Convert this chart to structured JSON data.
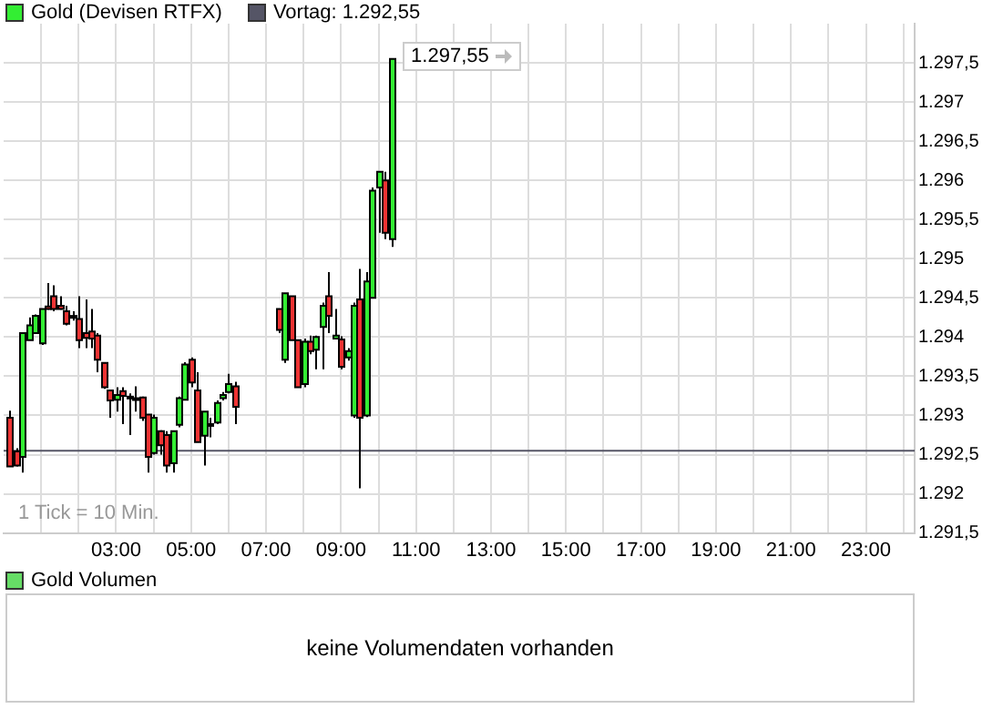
{
  "chart_data": [
    {
      "type": "candlestick",
      "legend": "top left",
      "grid": true,
      "series": [
        {
          "name": "Gold (Devisen RTFX)",
          "color": "#33ee33",
          "x": [
            0.17,
            0.33,
            0.5,
            0.67,
            0.83,
            1,
            1.17,
            1.33,
            1.5,
            1.67,
            1.83,
            2,
            2.17,
            2.33,
            2.5,
            2.67,
            2.83,
            3,
            3.17,
            3.33,
            3.5,
            3.67,
            3.83,
            4,
            4.17,
            4.33,
            4.5,
            4.67,
            4.83,
            5,
            5.17,
            5.33,
            5.5,
            5.67,
            5.83,
            6,
            6.17,
            7.33,
            7.5,
            7.67,
            7.83,
            8,
            8.17,
            8.33,
            8.5,
            8.67,
            8.83,
            9,
            9.17,
            9.33,
            9.5,
            9.67,
            9.83,
            10,
            10.17,
            10.33
          ],
          "ohlc": [
            [
              1292.97,
              1293.06,
              1292.35,
              1292.35
            ],
            [
              1292.54,
              1292.58,
              1292.35,
              1292.36
            ],
            [
              1292.47,
              1294.05,
              1292.27,
              1294.05
            ],
            [
              1293.96,
              1294.25,
              1293.96,
              1294.15
            ],
            [
              1294.05,
              1294.29,
              1294.04,
              1294.27
            ],
            [
              1293.92,
              1294.36,
              1293.9,
              1294.36
            ],
            [
              1294.39,
              1294.69,
              1294.35,
              1294.36
            ],
            [
              1294.52,
              1294.66,
              1294.33,
              1294.36
            ],
            [
              1294.4,
              1294.52,
              1294.35,
              1294.36
            ],
            [
              1294.33,
              1294.4,
              1294.15,
              1294.17
            ],
            [
              1294.27,
              1294.33,
              1294.21,
              1294.26
            ],
            [
              1294.23,
              1294.52,
              1293.86,
              1293.96
            ],
            [
              1294.05,
              1294.48,
              1293.86,
              1293.99
            ],
            [
              1294.07,
              1294.36,
              1293.86,
              1293.98
            ],
            [
              1294.02,
              1294.05,
              1293.55,
              1293.71
            ],
            [
              1293.67,
              1293.67,
              1293.34,
              1293.36
            ],
            [
              1293.32,
              1293.32,
              1292.97,
              1293.19
            ],
            [
              1293.2,
              1293.36,
              1293.05,
              1293.26
            ],
            [
              1293.31,
              1293.36,
              1292.89,
              1293.25
            ],
            [
              1293.24,
              1293.28,
              1292.75,
              1293.23
            ],
            [
              1293.22,
              1293.37,
              1293.05,
              1293.21
            ],
            [
              1293.23,
              1293.24,
              1292.93,
              1292.97
            ],
            [
              1293.01,
              1293.01,
              1292.27,
              1292.47
            ],
            [
              1292.52,
              1293.01,
              1292.5,
              1292.97
            ],
            [
              1292.8,
              1292.81,
              1292.5,
              1292.62
            ],
            [
              1292.75,
              1292.8,
              1292.27,
              1292.36
            ],
            [
              1292.39,
              1292.8,
              1292.27,
              1292.8
            ],
            [
              1292.88,
              1293.24,
              1292.85,
              1293.22
            ],
            [
              1293.2,
              1293.68,
              1293.19,
              1293.65
            ],
            [
              1293.71,
              1293.74,
              1293.36,
              1293.42
            ],
            [
              1293.32,
              1293.55,
              1292.66,
              1292.66
            ],
            [
              1292.74,
              1293.05,
              1292.36,
              1293.05
            ],
            [
              1292.89,
              1292.97,
              1292.72,
              1292.88
            ],
            [
              1292.91,
              1293.19,
              1292.89,
              1293.16
            ],
            [
              1293.22,
              1293.3,
              1293.19,
              1293.26
            ],
            [
              1293.3,
              1293.53,
              1293.28,
              1293.4
            ],
            [
              1293.37,
              1293.43,
              1292.89,
              1293.11
            ],
            [
              1294.36,
              1294.36,
              1294.05,
              1294.09
            ],
            [
              1293.71,
              1294.56,
              1293.67,
              1294.56
            ],
            [
              1294.52,
              1294.52,
              1293.96,
              1293.96
            ],
            [
              1293.96,
              1293.96,
              1293.36,
              1293.36
            ],
            [
              1293.4,
              1293.98,
              1293.36,
              1293.94
            ],
            [
              1293.94,
              1294.02,
              1293.78,
              1293.82
            ],
            [
              1293.84,
              1294.02,
              1293.59,
              1294
            ],
            [
              1294.13,
              1294.44,
              1293.59,
              1294.4
            ],
            [
              1294.52,
              1294.83,
              1294.05,
              1294.27
            ],
            [
              1293.98,
              1294.36,
              1293.98,
              1294.02
            ],
            [
              1293.97,
              1294.01,
              1293.59,
              1293.62
            ],
            [
              1293.74,
              1293.86,
              1293.7,
              1293.82
            ],
            [
              1293,
              1294.44,
              1292.97,
              1294.4
            ],
            [
              1294.48,
              1294.87,
              1292.07,
              1292.97
            ],
            [
              1293,
              1294.83,
              1292.98,
              1294.71
            ],
            [
              1294.5,
              1295.91,
              1294.5,
              1295.87
            ],
            [
              1295.91,
              1296.11,
              1295.33,
              1296.11
            ],
            [
              1296,
              1296.11,
              1295.25,
              1295.33
            ],
            [
              1295.25,
              1297.55,
              1295.15,
              1297.55
            ]
          ],
          "colors": [
            "#ee3333",
            "#ee3333",
            "#33ee33",
            "#33ee33",
            "#33ee33",
            "#33ee33",
            "#ee3333",
            "#ee3333",
            "#ee3333",
            "#ee3333",
            "#ee3333",
            "#ee3333",
            "#ee3333",
            "#ee3333",
            "#ee3333",
            "#ee3333",
            "#ee3333",
            "#33ee33",
            "#ee3333",
            "#ee3333",
            "#ee3333",
            "#ee3333",
            "#ee3333",
            "#33ee33",
            "#ee3333",
            "#ee3333",
            "#33ee33",
            "#33ee33",
            "#33ee33",
            "#ee3333",
            "#ee3333",
            "#33ee33",
            "#ee3333",
            "#33ee33",
            "#33ee33",
            "#33ee33",
            "#ee3333",
            "#ee3333",
            "#33ee33",
            "#ee3333",
            "#ee3333",
            "#33ee33",
            "#ee3333",
            "#33ee33",
            "#33ee33",
            "#ee3333",
            "#33ee33",
            "#ee3333",
            "#33ee33",
            "#33ee33",
            "#ee3333",
            "#33ee33",
            "#33ee33",
            "#33ee33",
            "#ee3333",
            "#33ee33"
          ]
        }
      ],
      "xlim": [
        0,
        24.3
      ],
      "xticks": [
        {
          "value": 1,
          "label": null
        },
        {
          "value": 2,
          "label": null
        },
        {
          "value": 3,
          "label": "03:00"
        },
        {
          "value": 4,
          "label": null
        },
        {
          "value": 5,
          "label": "05:00"
        },
        {
          "value": 6,
          "label": null
        },
        {
          "value": 7,
          "label": "07:00"
        },
        {
          "value": 8,
          "label": null
        },
        {
          "value": 9,
          "label": "09:00"
        },
        {
          "value": 10,
          "label": null
        },
        {
          "value": 11,
          "label": "11:00"
        },
        {
          "value": 12,
          "label": null
        },
        {
          "value": 13,
          "label": "13:00"
        },
        {
          "value": 14,
          "label": null
        },
        {
          "value": 15,
          "label": "15:00"
        },
        {
          "value": 16,
          "label": null
        },
        {
          "value": 17,
          "label": "17:00"
        },
        {
          "value": 18,
          "label": null
        },
        {
          "value": 19,
          "label": "19:00"
        },
        {
          "value": 20,
          "label": null
        },
        {
          "value": 21,
          "label": "21:00"
        },
        {
          "value": 22,
          "label": null
        },
        {
          "value": 23,
          "label": "23:00"
        },
        {
          "value": 24,
          "label": null
        }
      ],
      "ylim": [
        1291.5,
        1298
      ],
      "yticks": [
        {
          "value": 1291.5,
          "label": "1.291,5"
        },
        {
          "value": 1292,
          "label": "1.292"
        },
        {
          "value": 1292.5,
          "label": "1.292,5"
        },
        {
          "value": 1293,
          "label": "1.293"
        },
        {
          "value": 1293.5,
          "label": "1.293,5"
        },
        {
          "value": 1294,
          "label": "1.294"
        },
        {
          "value": 1294.5,
          "label": "1.294,5"
        },
        {
          "value": 1295,
          "label": "1.295"
        },
        {
          "value": 1295.5,
          "label": "1.295,5"
        },
        {
          "value": 1296,
          "label": "1.296"
        },
        {
          "value": 1296.5,
          "label": "1.296,5"
        },
        {
          "value": 1297,
          "label": "1.297"
        },
        {
          "value": 1297.5,
          "label": "1.297,5"
        }
      ],
      "ref_lines": [
        {
          "axis": "y",
          "value": 1292.55,
          "label": "Vortag: 1.292,55",
          "color": "#555566"
        }
      ],
      "annotations": [
        {
          "text": "1.297,55",
          "x": 10.33,
          "y": 1297.55
        },
        "1 Tick = 10 Min."
      ]
    },
    {
      "type": "other",
      "title": "Gold Volumen",
      "annotations": [
        "keine Volumendaten vorhanden"
      ]
    }
  ]
}
